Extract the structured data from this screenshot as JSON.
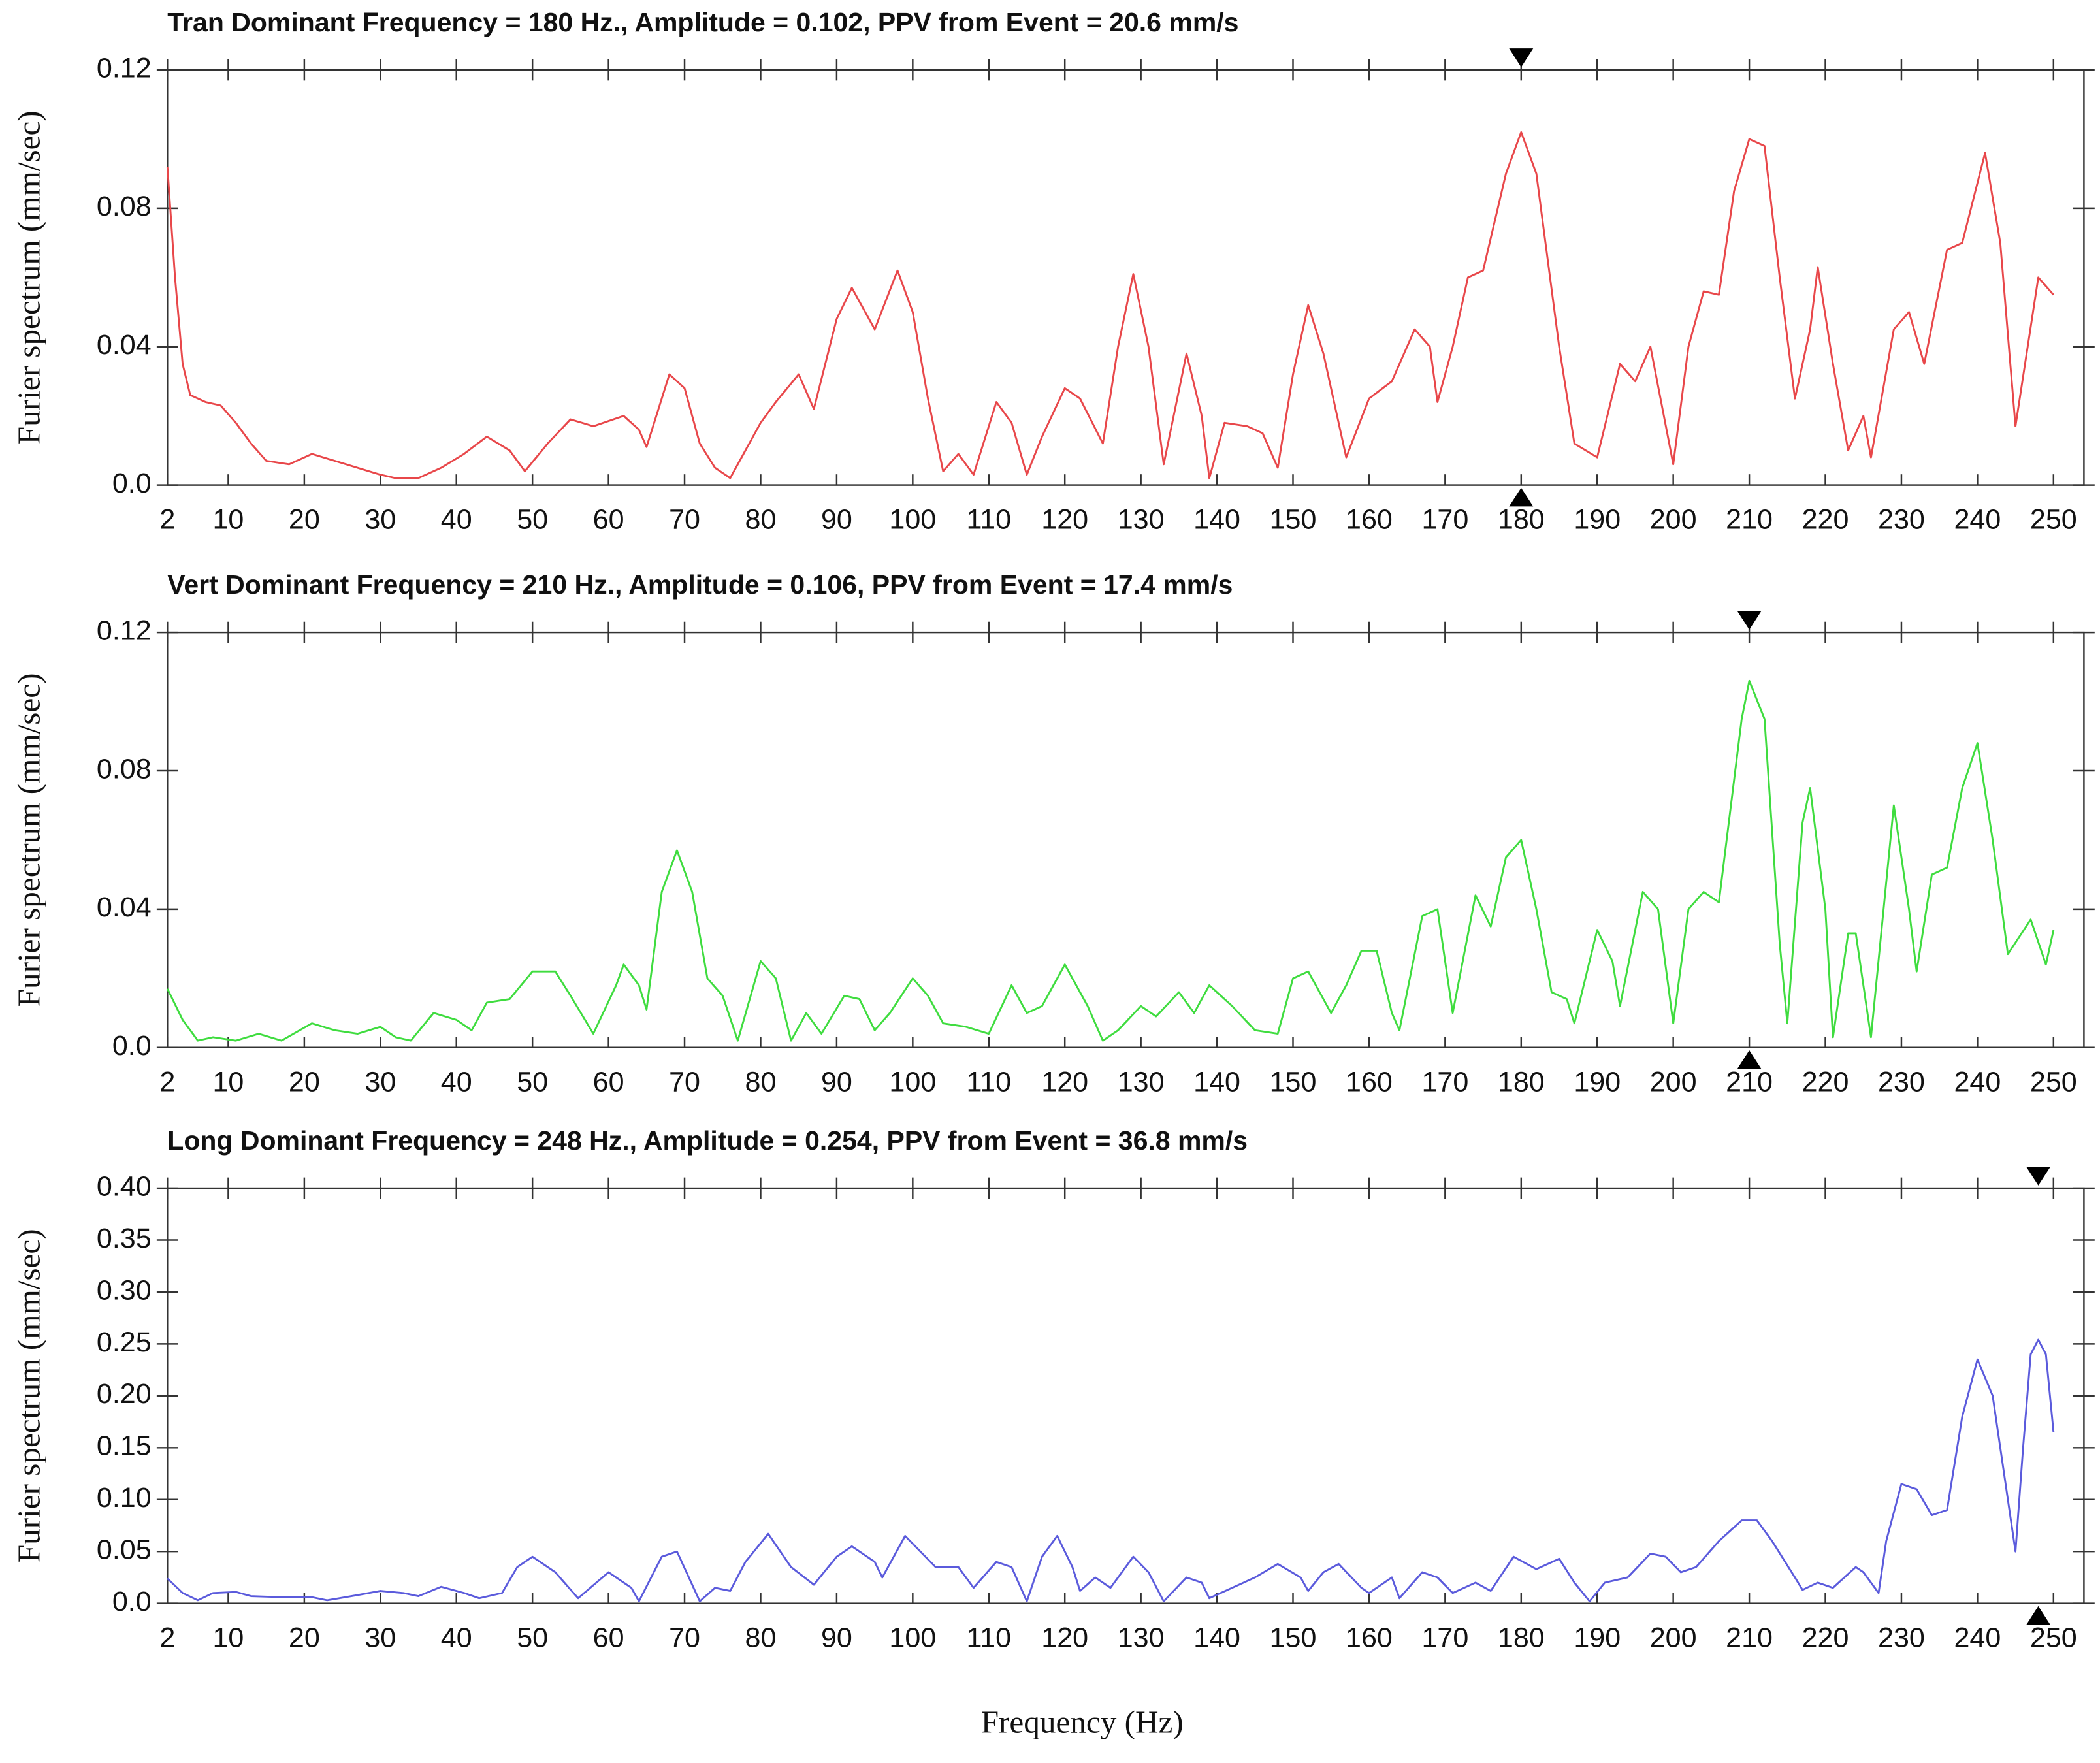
{
  "chart_data": [
    {
      "type": "line",
      "title": "Tran Dominant Frequency = 180 Hz., Amplitude = 0.102,  PPV from Event = 20.6 mm/s",
      "y_label": "Furier spectrum  (mm/sec)",
      "peak_x": 180,
      "xlim": [
        2,
        254
      ],
      "xticks": [
        2,
        10,
        20,
        30,
        40,
        50,
        60,
        70,
        80,
        90,
        100,
        110,
        120,
        130,
        140,
        150,
        160,
        170,
        180,
        190,
        200,
        210,
        220,
        230,
        240,
        250
      ],
      "ylim": [
        0,
        0.12
      ],
      "yticks": [
        {
          "value": 0,
          "label": "0.0"
        },
        0.04,
        0.08,
        0.12
      ],
      "series": [
        {
          "color": "#e8474a",
          "x": [
            2,
            3,
            4,
            5,
            7,
            9,
            11,
            13,
            15,
            18,
            21,
            24,
            27,
            30,
            32,
            35,
            38,
            41,
            44,
            47,
            49,
            52,
            55,
            58,
            62,
            64,
            65,
            68,
            70,
            72,
            74,
            76,
            78,
            80,
            82,
            85,
            87,
            90,
            92,
            95,
            98,
            100,
            102,
            104,
            106,
            108,
            111,
            113,
            115,
            117,
            120,
            122,
            125,
            127,
            129,
            131,
            133,
            136,
            138,
            139,
            141,
            144,
            146,
            148,
            150,
            152,
            154,
            157,
            160,
            163,
            166,
            168,
            169,
            171,
            173,
            175,
            178,
            180,
            182,
            185,
            187,
            190,
            193,
            195,
            197,
            200,
            202,
            204,
            206,
            208,
            210,
            212,
            214,
            216,
            218,
            219,
            221,
            223,
            225,
            226,
            229,
            231,
            233,
            236,
            238,
            241,
            243,
            245,
            248,
            250
          ],
          "values": [
            0.092,
            0.06,
            0.035,
            0.026,
            0.024,
            0.023,
            0.018,
            0.012,
            0.007,
            0.006,
            0.009,
            0.007,
            0.005,
            0.003,
            0.002,
            0.002,
            0.005,
            0.009,
            0.014,
            0.01,
            0.004,
            0.012,
            0.019,
            0.017,
            0.02,
            0.016,
            0.011,
            0.032,
            0.028,
            0.012,
            0.005,
            0.002,
            0.01,
            0.018,
            0.024,
            0.032,
            0.022,
            0.048,
            0.057,
            0.045,
            0.062,
            0.05,
            0.025,
            0.004,
            0.009,
            0.003,
            0.024,
            0.018,
            0.003,
            0.014,
            0.028,
            0.025,
            0.012,
            0.04,
            0.061,
            0.04,
            0.006,
            0.038,
            0.02,
            0.002,
            0.018,
            0.017,
            0.015,
            0.005,
            0.032,
            0.052,
            0.038,
            0.008,
            0.025,
            0.03,
            0.045,
            0.04,
            0.024,
            0.04,
            0.06,
            0.062,
            0.09,
            0.102,
            0.09,
            0.04,
            0.012,
            0.008,
            0.035,
            0.03,
            0.04,
            0.006,
            0.04,
            0.056,
            0.055,
            0.085,
            0.1,
            0.098,
            0.06,
            0.025,
            0.045,
            0.063,
            0.035,
            0.01,
            0.02,
            0.008,
            0.045,
            0.05,
            0.035,
            0.068,
            0.07,
            0.096,
            0.07,
            0.017,
            0.06,
            0.055
          ]
        }
      ]
    },
    {
      "type": "line",
      "title": "Vert Dominant Frequency = 210 Hz., Amplitude = 0.106,  PPV from Event = 17.4 mm/s",
      "y_label": "Furier spectrum  (mm/sec)",
      "peak_x": 210,
      "xlim": [
        2,
        254
      ],
      "xticks": [
        2,
        10,
        20,
        30,
        40,
        50,
        60,
        70,
        80,
        90,
        100,
        110,
        120,
        130,
        140,
        150,
        160,
        170,
        180,
        190,
        200,
        210,
        220,
        230,
        240,
        250
      ],
      "ylim": [
        0,
        0.12
      ],
      "yticks": [
        {
          "value": 0,
          "label": "0.0"
        },
        0.04,
        0.08,
        0.12
      ],
      "series": [
        {
          "color": "#3fdc3f",
          "x": [
            2,
            4,
            6,
            8,
            11,
            14,
            17,
            21,
            24,
            27,
            30,
            32,
            34,
            37,
            40,
            42,
            44,
            47,
            50,
            53,
            55,
            58,
            61,
            62,
            64,
            65,
            67,
            69,
            71,
            73,
            75,
            77,
            80,
            82,
            84,
            86,
            88,
            91,
            93,
            95,
            97,
            100,
            102,
            104,
            107,
            110,
            113,
            115,
            117,
            120,
            123,
            125,
            127,
            130,
            132,
            135,
            137,
            139,
            142,
            145,
            148,
            150,
            152,
            155,
            157,
            159,
            161,
            163,
            164,
            167,
            169,
            171,
            174,
            176,
            178,
            180,
            182,
            184,
            186,
            187,
            190,
            192,
            193,
            196,
            198,
            200,
            202,
            204,
            206,
            209,
            210,
            212,
            214,
            215,
            217,
            218,
            220,
            221,
            223,
            224,
            226,
            229,
            231,
            232,
            234,
            236,
            238,
            240,
            242,
            244,
            247,
            249,
            250
          ],
          "values": [
            0.017,
            0.008,
            0.002,
            0.003,
            0.002,
            0.004,
            0.002,
            0.007,
            0.005,
            0.004,
            0.006,
            0.003,
            0.002,
            0.01,
            0.008,
            0.005,
            0.013,
            0.014,
            0.022,
            0.022,
            0.015,
            0.004,
            0.018,
            0.024,
            0.018,
            0.011,
            0.045,
            0.057,
            0.045,
            0.02,
            0.015,
            0.002,
            0.025,
            0.02,
            0.002,
            0.01,
            0.004,
            0.015,
            0.014,
            0.005,
            0.01,
            0.02,
            0.015,
            0.007,
            0.006,
            0.004,
            0.018,
            0.01,
            0.012,
            0.024,
            0.012,
            0.002,
            0.005,
            0.012,
            0.009,
            0.016,
            0.01,
            0.018,
            0.012,
            0.005,
            0.004,
            0.02,
            0.022,
            0.01,
            0.018,
            0.028,
            0.028,
            0.01,
            0.005,
            0.038,
            0.04,
            0.01,
            0.044,
            0.035,
            0.055,
            0.06,
            0.04,
            0.016,
            0.014,
            0.007,
            0.034,
            0.025,
            0.012,
            0.045,
            0.04,
            0.007,
            0.04,
            0.045,
            0.042,
            0.095,
            0.106,
            0.095,
            0.03,
            0.007,
            0.065,
            0.075,
            0.04,
            0.003,
            0.033,
            0.033,
            0.003,
            0.07,
            0.04,
            0.022,
            0.05,
            0.052,
            0.075,
            0.088,
            0.06,
            0.027,
            0.037,
            0.024,
            0.034
          ]
        }
      ]
    },
    {
      "type": "line",
      "title": "Long Dominant Frequency = 248 Hz., Amplitude = 0.254,  PPV from Event = 36.8 mm/s",
      "y_label": "Furier spectrum  (mm/sec)",
      "peak_x": 248,
      "xlim": [
        2,
        254
      ],
      "xticks": [
        2,
        10,
        20,
        30,
        40,
        50,
        60,
        70,
        80,
        90,
        100,
        110,
        120,
        130,
        140,
        150,
        160,
        170,
        180,
        190,
        200,
        210,
        220,
        230,
        240,
        250
      ],
      "ylim": [
        0,
        0.4
      ],
      "yticks": [
        {
          "value": 0,
          "label": "0.0"
        },
        0.05,
        {
          "value": 0.1,
          "label": "0.10"
        },
        0.15,
        {
          "value": 0.2,
          "label": "0.20"
        },
        0.25,
        {
          "value": 0.3,
          "label": "0.30"
        },
        0.35,
        {
          "value": 0.4,
          "label": "0.40"
        }
      ],
      "series": [
        {
          "color": "#5b5bdc",
          "x": [
            2,
            4,
            6,
            8,
            11,
            13,
            17,
            21,
            23,
            27,
            30,
            33,
            35,
            38,
            41,
            43,
            46,
            48,
            50,
            53,
            56,
            60,
            63,
            64,
            67,
            69,
            72,
            74,
            76,
            78,
            81,
            84,
            87,
            90,
            92,
            95,
            96,
            99,
            101,
            103,
            106,
            108,
            111,
            113,
            115,
            117,
            119,
            121,
            122,
            124,
            126,
            129,
            131,
            133,
            136,
            138,
            139,
            142,
            145,
            148,
            151,
            152,
            154,
            156,
            159,
            160,
            163,
            164,
            167,
            169,
            171,
            174,
            176,
            179,
            182,
            185,
            187,
            189,
            191,
            194,
            197,
            199,
            201,
            203,
            206,
            209,
            211,
            213,
            216,
            217,
            219,
            221,
            224,
            225,
            227,
            228,
            230,
            232,
            234,
            236,
            238,
            240,
            242,
            244,
            245,
            246,
            247,
            248,
            249,
            250
          ],
          "values": [
            0.024,
            0.01,
            0.003,
            0.01,
            0.011,
            0.007,
            0.006,
            0.006,
            0.003,
            0.008,
            0.012,
            0.01,
            0.007,
            0.016,
            0.01,
            0.005,
            0.01,
            0.035,
            0.045,
            0.03,
            0.005,
            0.03,
            0.015,
            0.002,
            0.045,
            0.05,
            0.002,
            0.015,
            0.012,
            0.04,
            0.067,
            0.035,
            0.018,
            0.045,
            0.055,
            0.04,
            0.025,
            0.065,
            0.05,
            0.035,
            0.035,
            0.015,
            0.04,
            0.035,
            0.002,
            0.045,
            0.065,
            0.035,
            0.012,
            0.025,
            0.015,
            0.045,
            0.03,
            0.002,
            0.025,
            0.02,
            0.005,
            0.015,
            0.025,
            0.038,
            0.025,
            0.012,
            0.03,
            0.038,
            0.015,
            0.01,
            0.025,
            0.005,
            0.03,
            0.025,
            0.01,
            0.02,
            0.012,
            0.045,
            0.033,
            0.043,
            0.02,
            0.002,
            0.02,
            0.025,
            0.048,
            0.045,
            0.03,
            0.035,
            0.06,
            0.08,
            0.08,
            0.06,
            0.025,
            0.013,
            0.02,
            0.015,
            0.035,
            0.03,
            0.01,
            0.06,
            0.115,
            0.11,
            0.085,
            0.09,
            0.18,
            0.235,
            0.2,
            0.1,
            0.05,
            0.15,
            0.24,
            0.254,
            0.24,
            0.165
          ]
        }
      ]
    }
  ],
  "x_label": "Frequency  (Hz)"
}
